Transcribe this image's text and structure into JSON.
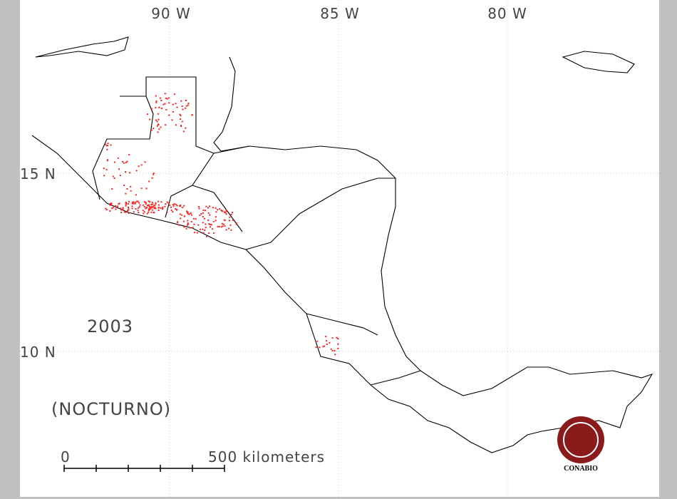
{
  "map": {
    "longitude_labels": [
      "90 W",
      "85 W",
      "80 W"
    ],
    "latitude_labels": [
      "15 N",
      "10 N"
    ],
    "year": "2003",
    "period": "(NOCTURNO)",
    "scale": {
      "start": "0",
      "end": "500 kilometers"
    },
    "logo": "CONABIO"
  }
}
